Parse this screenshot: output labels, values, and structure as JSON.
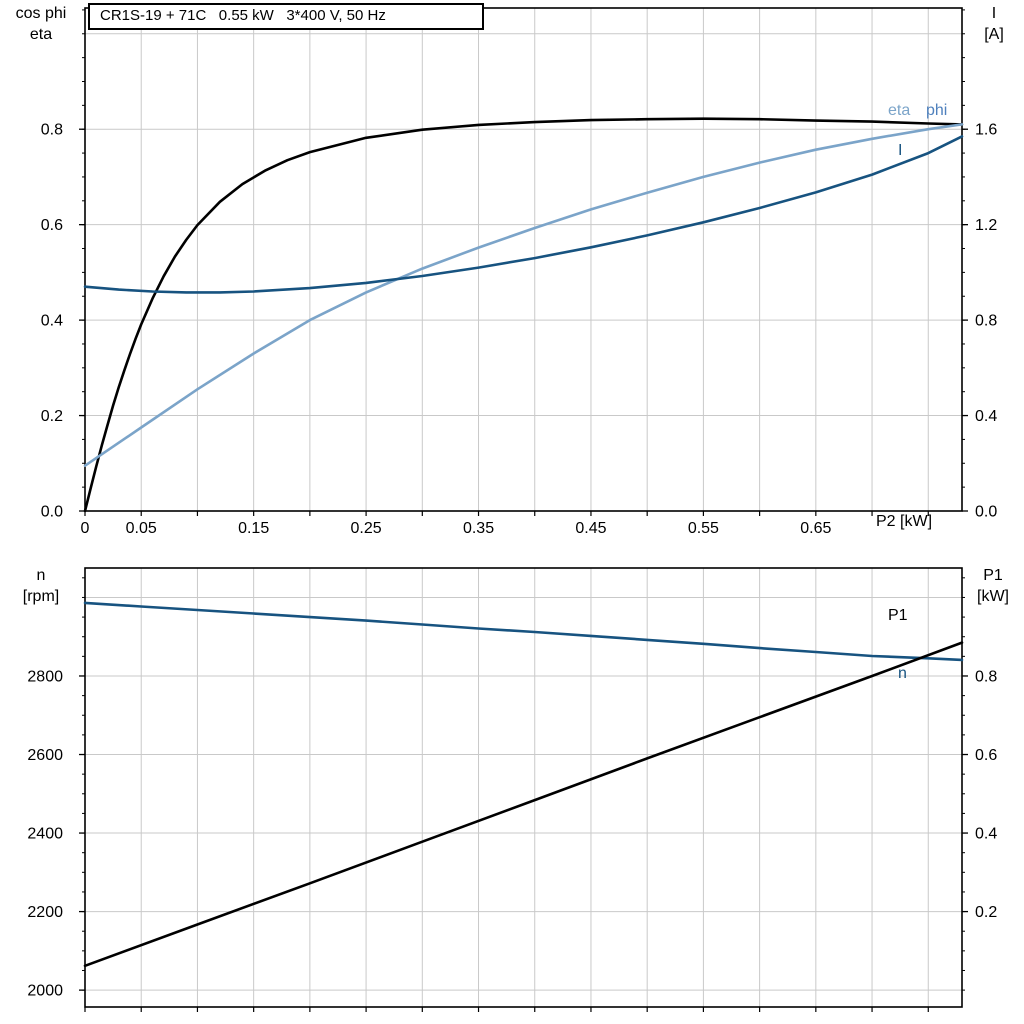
{
  "colors": {
    "black": "#000000",
    "dark_blue": "#175380",
    "light_blue": "#7BA4C9",
    "phi_label": "#4F81BD",
    "grid": "#C9C9C9",
    "frame": "#000000",
    "background": "#FFFFFF"
  },
  "title_box": {
    "text": "CR1S-19 + 71C   0.55 kW   3*400 V, 50 Hz"
  },
  "chart_data": [
    {
      "id": "motor-electrical-curves",
      "type": "line",
      "title": "CR1S-19 + 71C   0.55 kW   3*400 V, 50 Hz",
      "grid": true,
      "x_axis": {
        "label": "P2 [kW]",
        "min": 0,
        "max": 0.78,
        "grid_step": 0.05,
        "tick_values": [
          0,
          0.05,
          0.15,
          0.25,
          0.35,
          0.45,
          0.55,
          0.65
        ],
        "tick_labels": [
          "0",
          "0.05",
          "0.15",
          "0.25",
          "0.35",
          "0.45",
          "0.55",
          "0.65"
        ]
      },
      "left_axis": {
        "label_lines": [
          "cos phi",
          "eta"
        ],
        "min": 0,
        "max": 1.054,
        "minor_step": 0.05,
        "ticks": [
          0,
          0.2,
          0.4,
          0.6,
          0.8
        ],
        "tick_labels": [
          "0.0",
          "0.2",
          "0.4",
          "0.6",
          "0.8"
        ],
        "grid": [
          0.2,
          0.4,
          0.6,
          0.8,
          1.0
        ]
      },
      "right_axis": {
        "label_lines": [
          "I",
          "[A]"
        ],
        "min": 0,
        "max": 2.108,
        "minor_step": 0.1,
        "ticks": [
          0,
          0.4,
          0.8,
          1.2,
          1.6
        ],
        "tick_labels": [
          "0.0",
          "0.4",
          "0.8",
          "1.2",
          "1.6"
        ]
      },
      "series": [
        {
          "name": "cos-phi",
          "label": "phi",
          "axis": "left",
          "color_key": "black",
          "x": [
            0,
            0.005,
            0.01,
            0.015,
            0.02,
            0.025,
            0.03,
            0.035,
            0.04,
            0.045,
            0.05,
            0.06,
            0.07,
            0.08,
            0.09,
            0.1,
            0.12,
            0.14,
            0.16,
            0.18,
            0.2,
            0.25,
            0.3,
            0.35,
            0.4,
            0.45,
            0.5,
            0.55,
            0.6,
            0.65,
            0.7,
            0.75,
            0.78
          ],
          "y": [
            0,
            0.047,
            0.093,
            0.138,
            0.18,
            0.221,
            0.259,
            0.295,
            0.329,
            0.361,
            0.391,
            0.445,
            0.492,
            0.533,
            0.568,
            0.599,
            0.648,
            0.685,
            0.713,
            0.735,
            0.752,
            0.782,
            0.799,
            0.809,
            0.815,
            0.819,
            0.821,
            0.822,
            0.821,
            0.818,
            0.816,
            0.812,
            0.81
          ]
        },
        {
          "name": "eta",
          "label": "eta",
          "axis": "left",
          "color_key": "light_blue",
          "x": [
            0,
            0.05,
            0.1,
            0.15,
            0.2,
            0.25,
            0.3,
            0.35,
            0.4,
            0.45,
            0.5,
            0.55,
            0.6,
            0.65,
            0.7,
            0.75,
            0.78
          ],
          "y": [
            0.095,
            0.175,
            0.255,
            0.33,
            0.4,
            0.458,
            0.508,
            0.552,
            0.593,
            0.632,
            0.667,
            0.7,
            0.73,
            0.757,
            0.78,
            0.8,
            0.81
          ]
        },
        {
          "name": "current",
          "label": "I",
          "axis": "right",
          "color_key": "dark_blue",
          "x": [
            0,
            0.03,
            0.06,
            0.09,
            0.12,
            0.15,
            0.2,
            0.25,
            0.3,
            0.35,
            0.4,
            0.45,
            0.5,
            0.55,
            0.6,
            0.65,
            0.7,
            0.75,
            0.78
          ],
          "y": [
            0.94,
            0.928,
            0.92,
            0.916,
            0.916,
            0.92,
            0.934,
            0.956,
            0.985,
            1.02,
            1.06,
            1.105,
            1.155,
            1.21,
            1.27,
            1.335,
            1.41,
            1.5,
            1.57
          ]
        }
      ]
    },
    {
      "id": "speed-power-curves",
      "type": "line",
      "grid": true,
      "x_axis": {
        "label": "",
        "min": 0,
        "max": 0.78,
        "grid_step": 0.05,
        "tick_values": [],
        "tick_labels": []
      },
      "left_axis": {
        "label_lines": [
          "n",
          "[rpm]"
        ],
        "min": 1957,
        "max": 3075,
        "minor_step": 50,
        "ticks": [
          2000,
          2200,
          2400,
          2600,
          2800
        ],
        "tick_labels": [
          "2000",
          "2200",
          "2400",
          "2600",
          "2800"
        ],
        "grid": [
          2000,
          2200,
          2400,
          2600,
          2800,
          3000
        ]
      },
      "right_axis": {
        "label_lines": [
          "P1",
          "[kW]"
        ],
        "min": -0.043,
        "max": 1.075,
        "minor_step": 0.05,
        "ticks": [
          0.2,
          0.4,
          0.6,
          0.8
        ],
        "tick_labels": [
          "0.2",
          "0.4",
          "0.6",
          "0.8"
        ]
      },
      "series": [
        {
          "name": "speed",
          "label": "n",
          "axis": "left",
          "color_key": "dark_blue",
          "x": [
            0,
            0.05,
            0.1,
            0.15,
            0.2,
            0.25,
            0.3,
            0.35,
            0.4,
            0.45,
            0.5,
            0.55,
            0.6,
            0.65,
            0.7,
            0.75,
            0.78
          ],
          "y": [
            2986,
            2977,
            2968,
            2959,
            2950,
            2941,
            2931,
            2921,
            2912,
            2902,
            2892,
            2882,
            2871,
            2861,
            2851,
            2845,
            2841
          ]
        },
        {
          "name": "input-power",
          "label": "P1",
          "axis": "right",
          "color_key": "black",
          "x": [
            0,
            0.1,
            0.2,
            0.3,
            0.4,
            0.5,
            0.6,
            0.7,
            0.78
          ],
          "y": [
            0.062,
            0.167,
            0.272,
            0.378,
            0.484,
            0.59,
            0.695,
            0.8,
            0.885
          ]
        }
      ]
    }
  ]
}
